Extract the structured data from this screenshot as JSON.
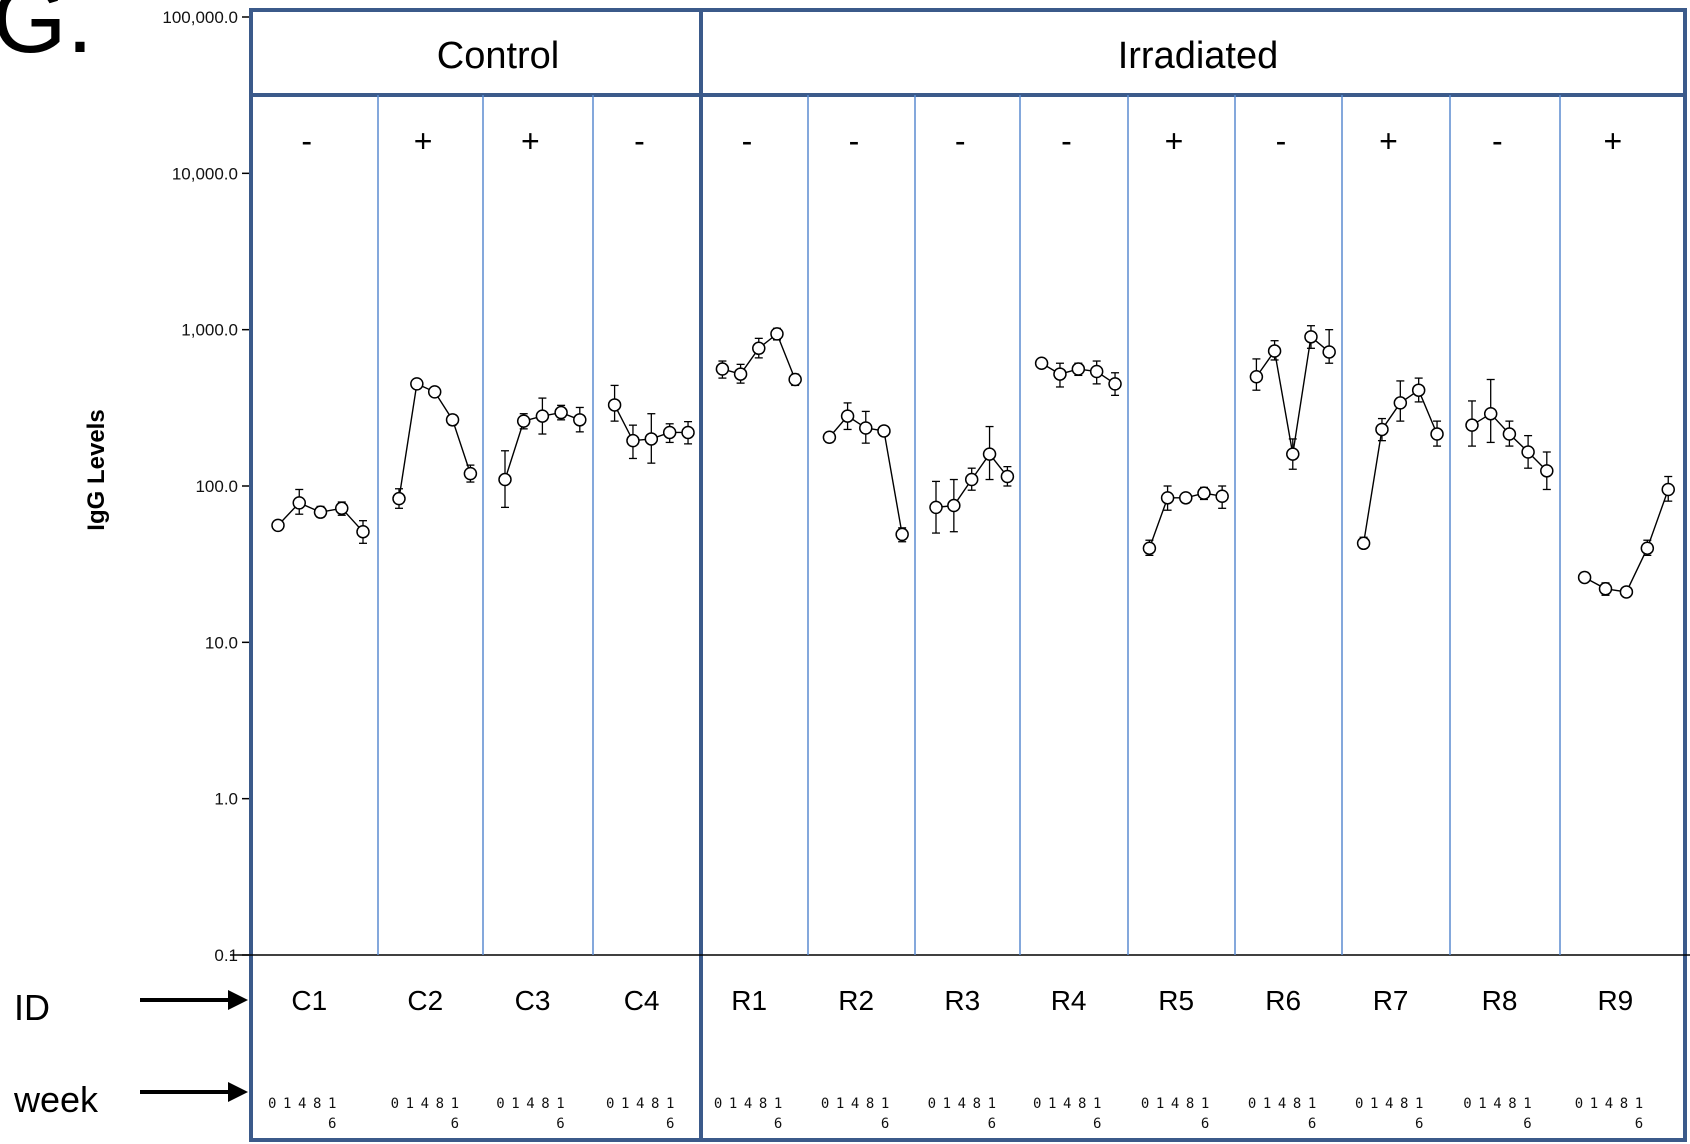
{
  "panel_letter": "G.",
  "y_axis_title": "IgG Levels",
  "row_labels": {
    "id": "ID",
    "week": "week"
  },
  "group_labels": [
    "Control",
    "Irradiated"
  ],
  "y_ticks": [
    "100,000.0",
    "10,000.0",
    "1,000.0",
    "100.0",
    "10.0",
    "1.0",
    "0.1"
  ],
  "week_ticks": [
    "0",
    "1",
    "4",
    "8",
    "1",
    "6"
  ],
  "chart_data": {
    "type": "line",
    "y_scale": "log",
    "ylabel": "IgG Levels",
    "ylim": [
      0.1,
      100000
    ],
    "x": [
      0,
      1,
      4,
      8,
      16
    ],
    "xlabel": "week",
    "markers": "open-circle",
    "error_bars": true,
    "groups": [
      {
        "name": "Control",
        "series": [
          "C1",
          "C2",
          "C3",
          "C4"
        ]
      },
      {
        "name": "Irradiated",
        "series": [
          "R1",
          "R2",
          "R3",
          "R4",
          "R5",
          "R6",
          "R7",
          "R8",
          "R9"
        ]
      }
    ],
    "series": [
      {
        "name": "C1",
        "group": "Control",
        "sign": "-",
        "values": [
          56,
          78,
          68,
          72,
          51
        ],
        "err_lo": [
          52,
          66,
          63,
          65,
          43
        ],
        "err_hi": [
          60,
          95,
          74,
          79,
          60
        ]
      },
      {
        "name": "C2",
        "group": "Control",
        "sign": "+",
        "values": [
          83,
          450,
          400,
          265,
          120
        ],
        "err_lo": [
          72,
          420,
          375,
          245,
          106
        ],
        "err_hi": [
          96,
          480,
          425,
          285,
          136
        ]
      },
      {
        "name": "C3",
        "group": "Control",
        "sign": "+",
        "values": [
          110,
          260,
          280,
          295,
          265
        ],
        "err_lo": [
          73,
          232,
          215,
          265,
          222
        ],
        "err_hi": [
          168,
          290,
          365,
          328,
          318
        ]
      },
      {
        "name": "C4",
        "group": "Control",
        "sign": "-",
        "values": [
          330,
          195,
          200,
          220,
          220
        ],
        "err_lo": [
          260,
          150,
          140,
          190,
          186
        ],
        "err_hi": [
          440,
          245,
          290,
          250,
          258
        ]
      },
      {
        "name": "R1",
        "group": "Irradiated",
        "sign": "-",
        "values": [
          560,
          520,
          760,
          940,
          480
        ],
        "err_lo": [
          490,
          455,
          660,
          860,
          440
        ],
        "err_hi": [
          630,
          600,
          880,
          1020,
          520
        ]
      },
      {
        "name": "R2",
        "group": "Irradiated",
        "sign": "-",
        "values": [
          205,
          280,
          235,
          225,
          49
        ],
        "err_lo": [
          190,
          230,
          188,
          210,
          44
        ],
        "err_hi": [
          220,
          340,
          300,
          240,
          54
        ]
      },
      {
        "name": "R3",
        "group": "Irradiated",
        "sign": "-",
        "values": [
          73,
          75,
          110,
          160,
          115
        ],
        "err_lo": [
          50,
          51,
          94,
          110,
          100
        ],
        "err_hi": [
          107,
          110,
          130,
          240,
          133
        ]
      },
      {
        "name": "R4",
        "group": "Irradiated",
        "sign": "-",
        "values": [
          610,
          520,
          560,
          540,
          450
        ],
        "err_lo": [
          590,
          430,
          510,
          450,
          380
        ],
        "err_hi": [
          630,
          610,
          610,
          630,
          530
        ]
      },
      {
        "name": "R5",
        "group": "Irradiated",
        "sign": "+",
        "values": [
          40,
          84,
          84,
          90,
          86
        ],
        "err_lo": [
          36,
          70,
          78,
          82,
          72
        ],
        "err_hi": [
          45,
          100,
          90,
          98,
          100
        ]
      },
      {
        "name": "R6",
        "group": "Irradiated",
        "sign": "-",
        "values": [
          500,
          730,
          160,
          900,
          720
        ],
        "err_lo": [
          410,
          640,
          128,
          760,
          610
        ],
        "err_hi": [
          650,
          850,
          200,
          1060,
          1000
        ]
      },
      {
        "name": "R7",
        "group": "Irradiated",
        "sign": "+",
        "values": [
          43,
          230,
          340,
          410,
          215
        ],
        "err_lo": [
          40,
          195,
          260,
          345,
          180
        ],
        "err_hi": [
          47,
          270,
          470,
          490,
          260
        ]
      },
      {
        "name": "R8",
        "group": "Irradiated",
        "sign": "-",
        "values": [
          245,
          290,
          215,
          165,
          125
        ],
        "err_lo": [
          180,
          190,
          180,
          130,
          95
        ],
        "err_hi": [
          350,
          480,
          260,
          210,
          165
        ]
      },
      {
        "name": "R9",
        "group": "Irradiated",
        "sign": "+",
        "values": [
          26,
          22,
          21,
          40,
          95
        ],
        "err_lo": [
          25,
          20,
          20,
          36,
          80
        ],
        "err_hi": [
          28,
          24,
          22,
          45,
          115
        ]
      }
    ]
  }
}
